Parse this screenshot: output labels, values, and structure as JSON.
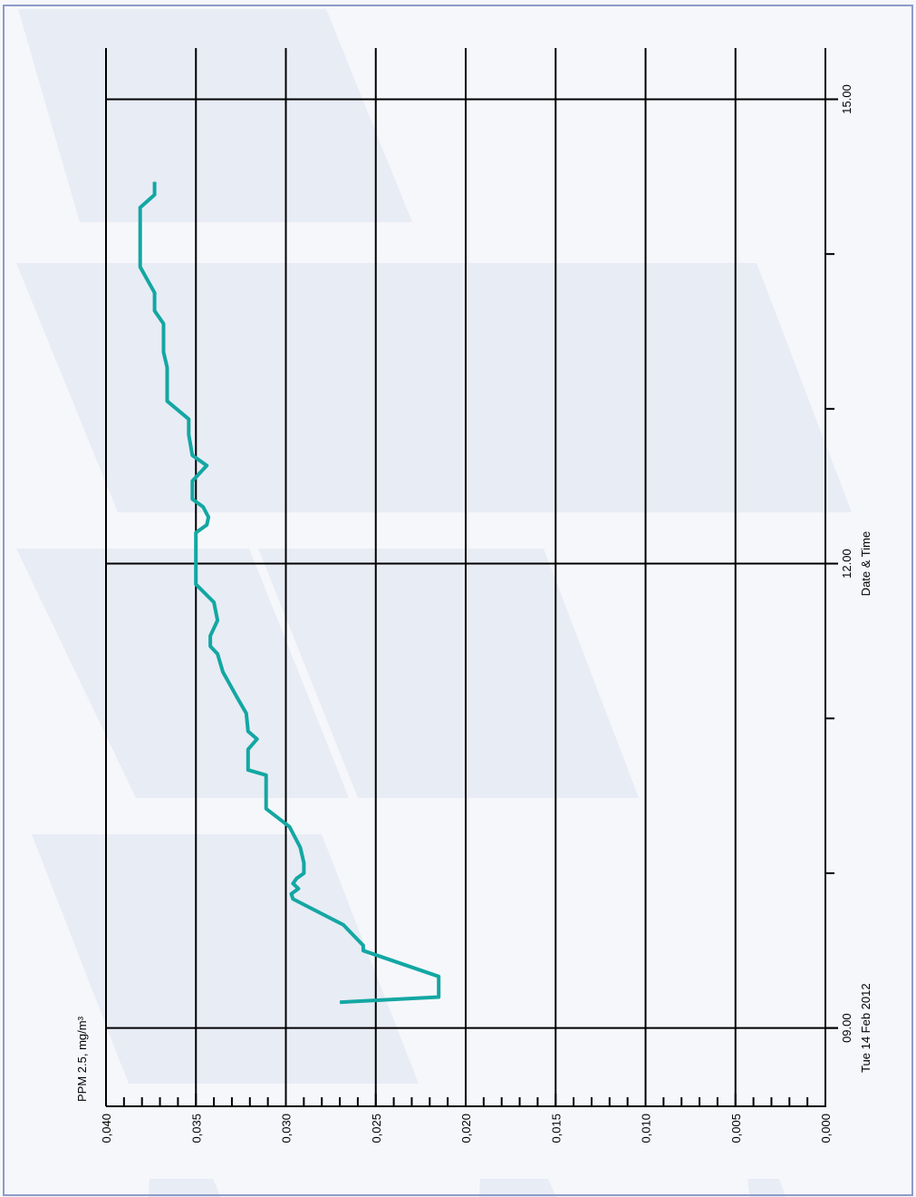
{
  "colors": {
    "page_background": "#f6f7fb",
    "frame": "#8d9bc8",
    "band": "#e8ecf5",
    "grid": "#000000",
    "series": "#13a7a3"
  },
  "chart_data": {
    "type": "line",
    "orientation": "rotated-90-clockwise",
    "ylabel": "PPM 2.5, mg/m³",
    "xlabel": "Date & Time",
    "date_label": "Tue 14 Feb 2012",
    "ylim": [
      0.0,
      0.04
    ],
    "xlim": [
      "08:30",
      "15:10"
    ],
    "y_ticks": [
      0.0,
      0.005,
      0.01,
      0.015,
      0.02,
      0.025,
      0.03,
      0.035,
      0.04
    ],
    "y_tick_labels": [
      "0,000",
      "0,005",
      "0,010",
      "0,015",
      "0,020",
      "0,025",
      "0,030",
      "0,035",
      "0,040"
    ],
    "x_major_ticks": [
      "09:00",
      "12:00",
      "15:00"
    ],
    "x_major_labels": [
      "09.00",
      "12.00",
      "15.00"
    ],
    "x_minor_ticks": [
      "10:00",
      "11:00",
      "13:00",
      "14:00"
    ],
    "grid": true,
    "series": [
      {
        "x": [
          "09:10",
          "09:12",
          "09:14",
          "09:20",
          "09:30",
          "09:32",
          "09:40",
          "09:50",
          "09:52",
          "09:54",
          "09:56",
          "09:58",
          "10:00",
          "10:04",
          "10:10",
          "10:18",
          "10:25",
          "10:32",
          "10:38",
          "10:40",
          "10:44",
          "10:48",
          "10:52",
          "10:55",
          "11:02",
          "11:08",
          "11:18",
          "11:25",
          "11:28",
          "11:32",
          "11:38",
          "11:45",
          "11:52",
          "12:00",
          "12:04",
          "12:08",
          "12:12",
          "12:15",
          "12:18",
          "12:22",
          "12:25",
          "12:28",
          "12:32",
          "12:38",
          "12:42",
          "12:50",
          "12:56",
          "13:03",
          "13:10",
          "13:16",
          "13:22",
          "13:28",
          "13:33",
          "13:38",
          "13:45",
          "13:55",
          "14:10",
          "14:18",
          "14:23",
          "14:28"
        ],
        "y": [
          0.027,
          0.0215,
          0.0215,
          0.0215,
          0.0257,
          0.0257,
          0.0268,
          0.0296,
          0.0297,
          0.0293,
          0.0296,
          0.0294,
          0.029,
          0.029,
          0.0292,
          0.0298,
          0.0311,
          0.0311,
          0.0311,
          0.0321,
          0.0321,
          0.0321,
          0.0316,
          0.0321,
          0.0322,
          0.0327,
          0.0335,
          0.0338,
          0.0342,
          0.0342,
          0.0338,
          0.034,
          0.035,
          0.035,
          0.035,
          0.035,
          0.035,
          0.0344,
          0.0343,
          0.0346,
          0.0352,
          0.0352,
          0.0352,
          0.0344,
          0.0352,
          0.0354,
          0.0354,
          0.0366,
          0.0366,
          0.0366,
          0.0368,
          0.0368,
          0.0368,
          0.0373,
          0.0373,
          0.0381,
          0.0381,
          0.0381,
          0.0373,
          0.0373
        ]
      }
    ]
  }
}
